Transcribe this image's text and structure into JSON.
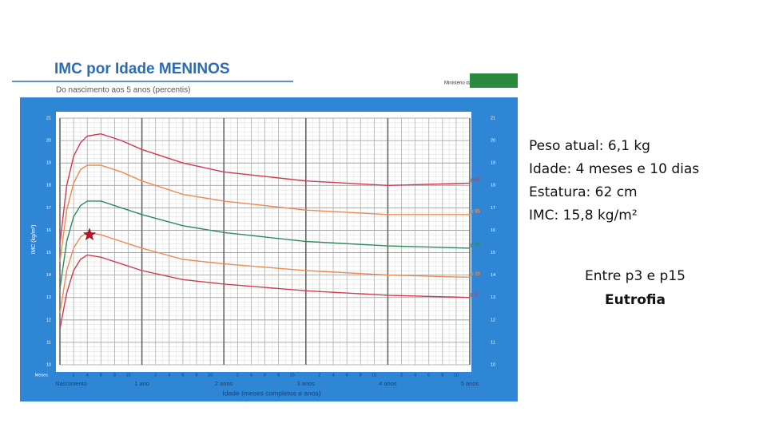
{
  "chart_data": {
    "type": "line",
    "title": "IMC por Idade MENINOS",
    "subtitle": "Do nascimento aos 5 anos (percentis)",
    "source": "Ministério da Saúde",
    "xlabel": "Idade (meses completos e anos)",
    "ylabel": "IMC (kg/m²)",
    "xtick_title": "Meses",
    "x": [
      0,
      1,
      2,
      3,
      4,
      6,
      9,
      12,
      18,
      24,
      36,
      48,
      60
    ],
    "series": [
      {
        "name": "p 97",
        "color": "#d23a50",
        "values": [
          15.4,
          18.0,
          19.3,
          19.9,
          20.2,
          20.3,
          20.0,
          19.6,
          19.0,
          18.6,
          18.2,
          18.0,
          18.1
        ]
      },
      {
        "name": "p 85",
        "color": "#ee8a50",
        "values": [
          14.6,
          16.9,
          18.1,
          18.7,
          18.9,
          18.9,
          18.6,
          18.2,
          17.6,
          17.3,
          16.9,
          16.7,
          16.7
        ]
      },
      {
        "name": "p 50",
        "color": "#2f8a5a",
        "values": [
          13.4,
          15.5,
          16.6,
          17.1,
          17.3,
          17.3,
          17.0,
          16.7,
          16.2,
          15.9,
          15.5,
          15.3,
          15.2
        ]
      },
      {
        "name": "p 15",
        "color": "#ee8a50",
        "values": [
          12.3,
          14.2,
          15.2,
          15.7,
          15.9,
          15.8,
          15.5,
          15.2,
          14.7,
          14.5,
          14.2,
          14.0,
          13.9
        ]
      },
      {
        "name": "p 3",
        "color": "#d23a50",
        "values": [
          11.6,
          13.2,
          14.2,
          14.7,
          14.9,
          14.8,
          14.5,
          14.2,
          13.8,
          13.6,
          13.3,
          13.1,
          13.0
        ]
      }
    ],
    "point": {
      "x": 4.33,
      "y": 15.8,
      "color": "#c0102a"
    },
    "xlim": [
      0,
      60
    ],
    "ylim": [
      10,
      21
    ],
    "yticks": [
      10,
      11,
      12,
      13,
      14,
      15,
      16,
      17,
      18,
      19,
      20,
      21
    ],
    "xticks": [
      2,
      4,
      6,
      8,
      10,
      {
        "value": 14,
        "label": "2"
      },
      {
        "value": 16,
        "label": "4"
      },
      {
        "value": 18,
        "label": "6"
      },
      {
        "value": 20,
        "label": "8"
      },
      {
        "value": 22,
        "label": "10"
      },
      {
        "value": 26,
        "label": "2"
      },
      {
        "value": 28,
        "label": "4"
      },
      {
        "value": 30,
        "label": "6"
      },
      {
        "value": 32,
        "label": "8"
      },
      {
        "value": 34,
        "label": "10"
      },
      {
        "value": 38,
        "label": "2"
      },
      {
        "value": 40,
        "label": "4"
      },
      {
        "value": 42,
        "label": "6"
      },
      {
        "value": 44,
        "label": "8"
      },
      {
        "value": 46,
        "label": "10"
      },
      {
        "value": 50,
        "label": "2"
      },
      {
        "value": 52,
        "label": "4"
      },
      {
        "value": 54,
        "label": "6"
      },
      {
        "value": 56,
        "label": "8"
      },
      {
        "value": 58,
        "label": "10"
      }
    ],
    "year_ticks": [
      {
        "value": 0,
        "label": "Nascimento"
      },
      {
        "value": 12,
        "label": "1 ano"
      },
      {
        "value": 24,
        "label": "2 anos"
      },
      {
        "value": 36,
        "label": "3 anos"
      },
      {
        "value": 48,
        "label": "4 anos"
      },
      {
        "value": 60,
        "label": "5 anos"
      }
    ],
    "grid": true
  },
  "info": {
    "lines": [
      "Peso atual: 6,1 kg",
      "Idade: 4 meses e 10 dias",
      "Estatura: 62 cm",
      "IMC: 15,8 kg/m²"
    ],
    "range": "Entre p3 e p15",
    "diagnosis": "Eutrofia"
  }
}
